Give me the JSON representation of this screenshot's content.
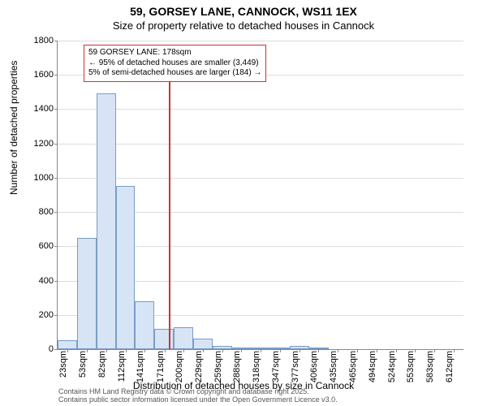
{
  "title": "59, GORSEY LANE, CANNOCK, WS11 1EX",
  "subtitle": "Size of property relative to detached houses in Cannock",
  "y_axis_label": "Number of detached properties",
  "x_axis_label": "Distribution of detached houses by size in Cannock",
  "attribution_line1": "Contains HM Land Registry data © Crown copyright and database right 2025.",
  "attribution_line2": "Contains public sector information licensed under the Open Government Licence v3.0.",
  "chart": {
    "type": "histogram",
    "background_color": "#ffffff",
    "grid_color": "#dddddd",
    "axis_color": "#888888",
    "bar_fill": "#d6e4f5",
    "bar_border": "#7a9cc6",
    "marker_color": "#cc3333",
    "title_fontsize": 14,
    "subtitle_fontsize": 13,
    "label_fontsize": 12,
    "tick_fontsize": 11,
    "annotation_fontsize": 10,
    "ylim": [
      0,
      1800
    ],
    "ytick_step": 200,
    "yticks": [
      0,
      200,
      400,
      600,
      800,
      1000,
      1200,
      1400,
      1600,
      1800
    ],
    "x_range": [
      8,
      627
    ],
    "xticks": [
      23,
      53,
      82,
      112,
      141,
      171,
      200,
      229,
      259,
      288,
      318,
      347,
      377,
      406,
      435,
      465,
      494,
      524,
      553,
      583,
      612
    ],
    "xtick_labels": [
      "23sqm",
      "53sqm",
      "82sqm",
      "112sqm",
      "141sqm",
      "171sqm",
      "200sqm",
      "229sqm",
      "259sqm",
      "288sqm",
      "318sqm",
      "347sqm",
      "377sqm",
      "406sqm",
      "435sqm",
      "465sqm",
      "494sqm",
      "524sqm",
      "553sqm",
      "583sqm",
      "612sqm"
    ],
    "bin_width": 29.5,
    "bars": [
      {
        "x": 8.15,
        "count": 50
      },
      {
        "x": 37.65,
        "count": 650
      },
      {
        "x": 67.15,
        "count": 1490
      },
      {
        "x": 96.65,
        "count": 950
      },
      {
        "x": 126.15,
        "count": 280
      },
      {
        "x": 155.65,
        "count": 120
      },
      {
        "x": 185.15,
        "count": 130
      },
      {
        "x": 214.65,
        "count": 60
      },
      {
        "x": 244.15,
        "count": 20
      },
      {
        "x": 273.65,
        "count": 5
      },
      {
        "x": 303.15,
        "count": 5
      },
      {
        "x": 332.65,
        "count": 5
      },
      {
        "x": 362.15,
        "count": 20
      },
      {
        "x": 391.65,
        "count": 5
      },
      {
        "x": 421.15,
        "count": 0
      },
      {
        "x": 450.65,
        "count": 0
      },
      {
        "x": 480.15,
        "count": 0
      },
      {
        "x": 509.65,
        "count": 0
      },
      {
        "x": 539.15,
        "count": 0
      },
      {
        "x": 568.65,
        "count": 0
      },
      {
        "x": 598.15,
        "count": 0
      }
    ],
    "marker_value": 178,
    "annotation": {
      "line1": "59 GORSEY LANE: 178sqm",
      "line2": "← 95% of detached houses are smaller (3,449)",
      "line3": "5% of semi-detached houses are larger (184) →"
    }
  }
}
